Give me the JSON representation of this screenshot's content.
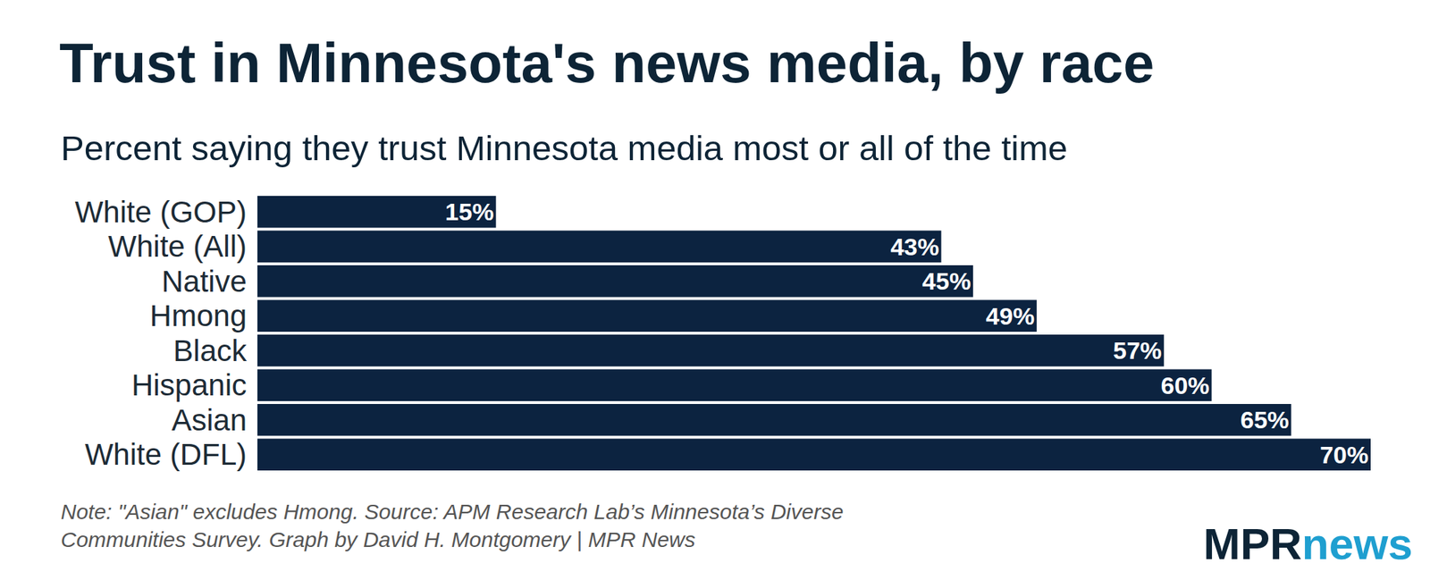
{
  "chart_data": {
    "type": "bar",
    "orientation": "horizontal",
    "title": "Trust in Minnesota's news media, by race",
    "subtitle": "Percent saying they trust Minnesota media most or all of the time",
    "categories": [
      "White (GOP)",
      "White (All)",
      "Native",
      "Hmong",
      "Black",
      "Hispanic",
      "Asian",
      "White (DFL)"
    ],
    "values": [
      15,
      43,
      45,
      49,
      57,
      60,
      65,
      70
    ],
    "value_labels": [
      "15%",
      "43%",
      "45%",
      "49%",
      "57%",
      "60%",
      "65%",
      "70%"
    ],
    "data_labels": true,
    "color": "#0c2340",
    "xlim": [
      0,
      70
    ],
    "xticks": [],
    "tick_labels": "y",
    "grid": false,
    "note": [
      "Note: \"Asian\" excludes Hmong. Source: APM Research Lab’s Minnesota’s Diverse",
      "Communities Survey. Graph by David H. Montgomery | MPR News"
    ],
    "logo": [
      "MPR",
      "news"
    ]
  }
}
